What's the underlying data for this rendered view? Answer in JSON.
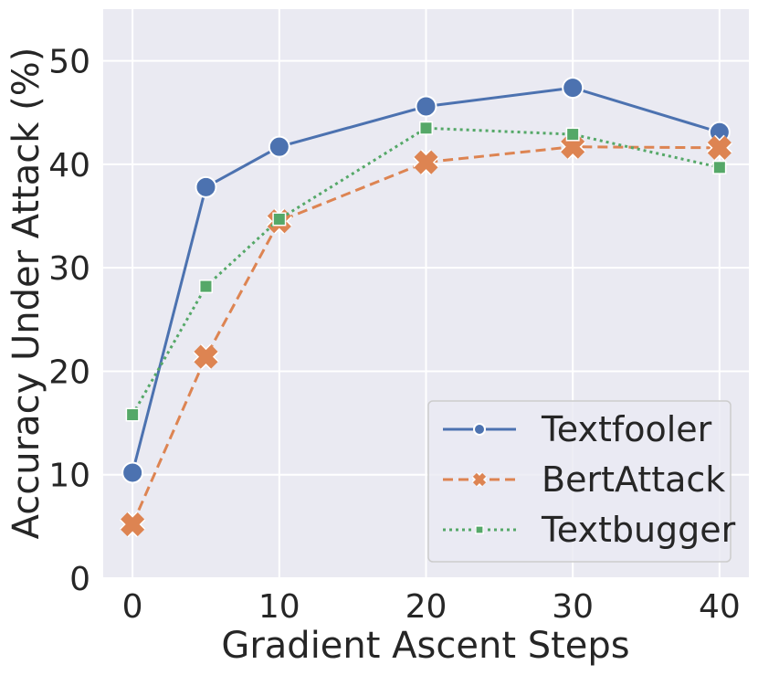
{
  "chart_data": {
    "type": "line",
    "xlabel": "Gradient Ascent Steps",
    "ylabel": "Accuracy Under Attack (%)",
    "x": [
      0,
      5,
      10,
      20,
      30,
      40
    ],
    "xticks": [
      0,
      10,
      20,
      30,
      40
    ],
    "yticks": [
      0,
      10,
      20,
      30,
      40,
      50
    ],
    "xlim": [
      -2,
      42
    ],
    "ylim": [
      0,
      55
    ],
    "grid": true,
    "legend_position": "bottom-right",
    "background": "#eaeaf2",
    "series": [
      {
        "name": "Textfooler",
        "values": [
          10.2,
          37.8,
          41.7,
          45.6,
          47.4,
          43.1
        ],
        "color": "#4c72b0",
        "marker": "circle",
        "dash": "solid"
      },
      {
        "name": "BertAttack",
        "values": [
          5.2,
          21.4,
          34.5,
          40.2,
          41.7,
          41.6
        ],
        "color": "#dd8452",
        "marker": "x",
        "dash": "dashed"
      },
      {
        "name": "Textbugger",
        "values": [
          15.8,
          28.2,
          34.7,
          43.5,
          42.9,
          39.7
        ],
        "color": "#55a868",
        "marker": "square",
        "dash": "dotted"
      }
    ]
  }
}
